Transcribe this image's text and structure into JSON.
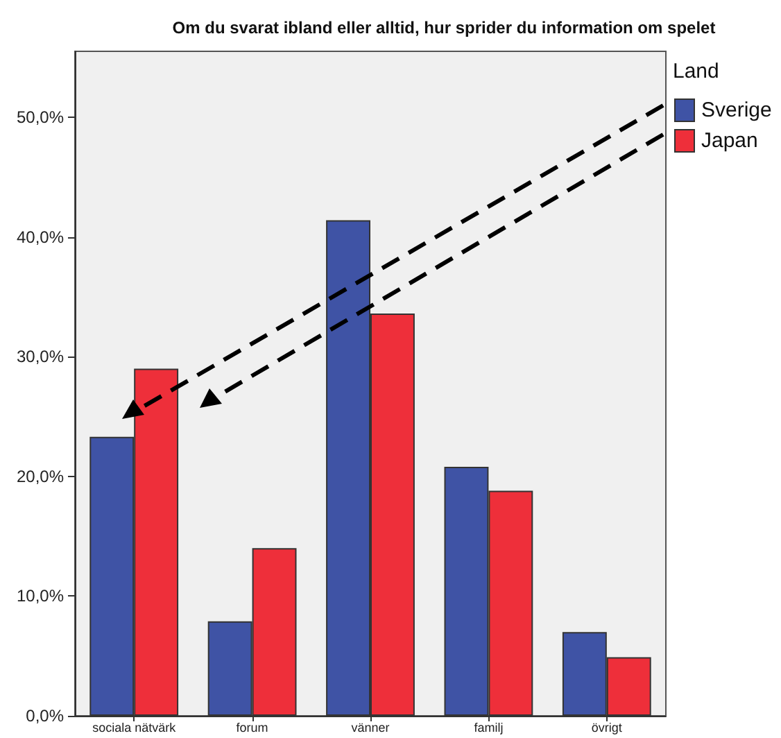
{
  "chart_data": {
    "type": "bar",
    "title": "Om du svarat ibland eller alltid, hur sprider du information om spelet",
    "legend_title": "Land",
    "categories": [
      "sociala nätvärk",
      "forum",
      "vänner",
      "familj",
      "övrigt"
    ],
    "series": [
      {
        "name": "Sverige",
        "color": "#3f53a5",
        "values": [
          23.3,
          7.9,
          41.4,
          20.8,
          7.0
        ]
      },
      {
        "name": "Japan",
        "color": "#ee2f3a",
        "values": [
          29.0,
          14.0,
          33.6,
          18.8,
          4.9
        ]
      }
    ],
    "ylim": [
      0,
      55.5
    ],
    "yticks": [
      {
        "value": 0,
        "label": "0,0%"
      },
      {
        "value": 10,
        "label": "10,0%"
      },
      {
        "value": 20,
        "label": "20,0%"
      },
      {
        "value": 30,
        "label": "30,0%"
      },
      {
        "value": 40,
        "label": "40,0%"
      },
      {
        "value": 50,
        "label": "50,0%"
      }
    ],
    "grid": false,
    "legend": "top right"
  }
}
